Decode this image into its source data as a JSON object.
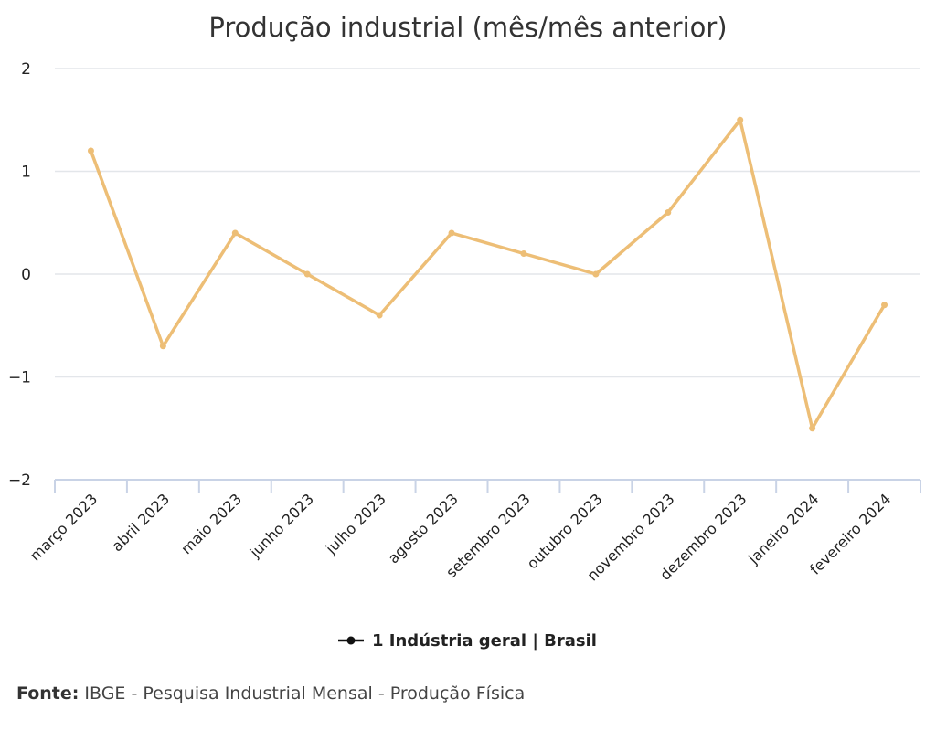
{
  "colors": {
    "series": "#EDBE76",
    "grid": "#E3E6EA",
    "axis": "#C9D3E6",
    "legend_marker": "#111111"
  },
  "chart_data": {
    "type": "line",
    "title": "Produção industrial (mês/mês anterior)",
    "xlabel": "",
    "ylabel": "",
    "categories": [
      "março 2023",
      "abril 2023",
      "maio 2023",
      "junho 2023",
      "julho 2023",
      "agosto 2023",
      "setembro 2023",
      "outubro 2023",
      "novembro 2023",
      "dezembro 2023",
      "janeiro 2024",
      "fevereiro 2024"
    ],
    "series": [
      {
        "name": "1 Indústria geral | Brasil",
        "values": [
          1.2,
          -0.7,
          0.4,
          0.0,
          -0.4,
          0.4,
          0.2,
          0.0,
          0.6,
          1.5,
          -1.5,
          -0.3
        ]
      }
    ],
    "ylim": [
      -2,
      2
    ],
    "yticks": [
      2,
      1,
      0,
      -1,
      -2
    ],
    "ytick_labels": [
      "2",
      "1",
      "0",
      "−1",
      "−2"
    ],
    "grid": true,
    "legend_position": "bottom-center"
  },
  "source": {
    "label": "Fonte:",
    "text": "IBGE - Pesquisa Industrial Mensal - Produção Física"
  }
}
